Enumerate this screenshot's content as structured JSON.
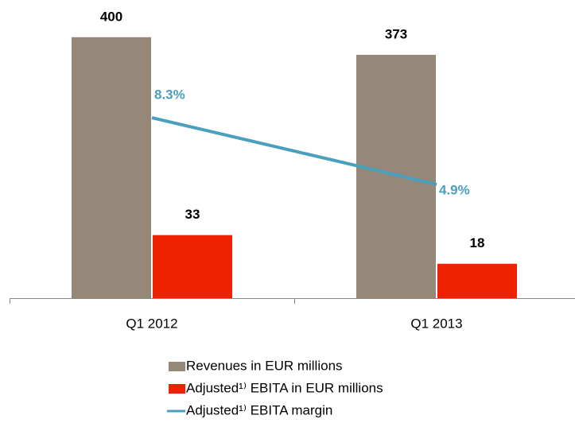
{
  "chart_data": {
    "type": "bar",
    "categories": [
      "Q1 2012",
      "Q1 2013"
    ],
    "series": [
      {
        "name": "Revenues in EUR millions",
        "color": "#968878",
        "values": [
          400,
          373
        ]
      },
      {
        "name": "Adjusted¹⁾ EBITA in EUR millions",
        "color": "#ee2200",
        "values": [
          33,
          18
        ],
        "axis": "y2"
      },
      {
        "name": "Adjusted¹⁾ EBITA margin",
        "color": "#4a9fbc",
        "type": "line",
        "values": [
          8.3,
          4.9
        ],
        "value_labels": [
          "8.3%",
          "4.9%"
        ],
        "axis": "y3"
      }
    ],
    "ylim": [
      0,
      457
    ],
    "y2lim": [
      0,
      156
    ],
    "y3lim": [
      -0.9,
      14.3
    ]
  }
}
